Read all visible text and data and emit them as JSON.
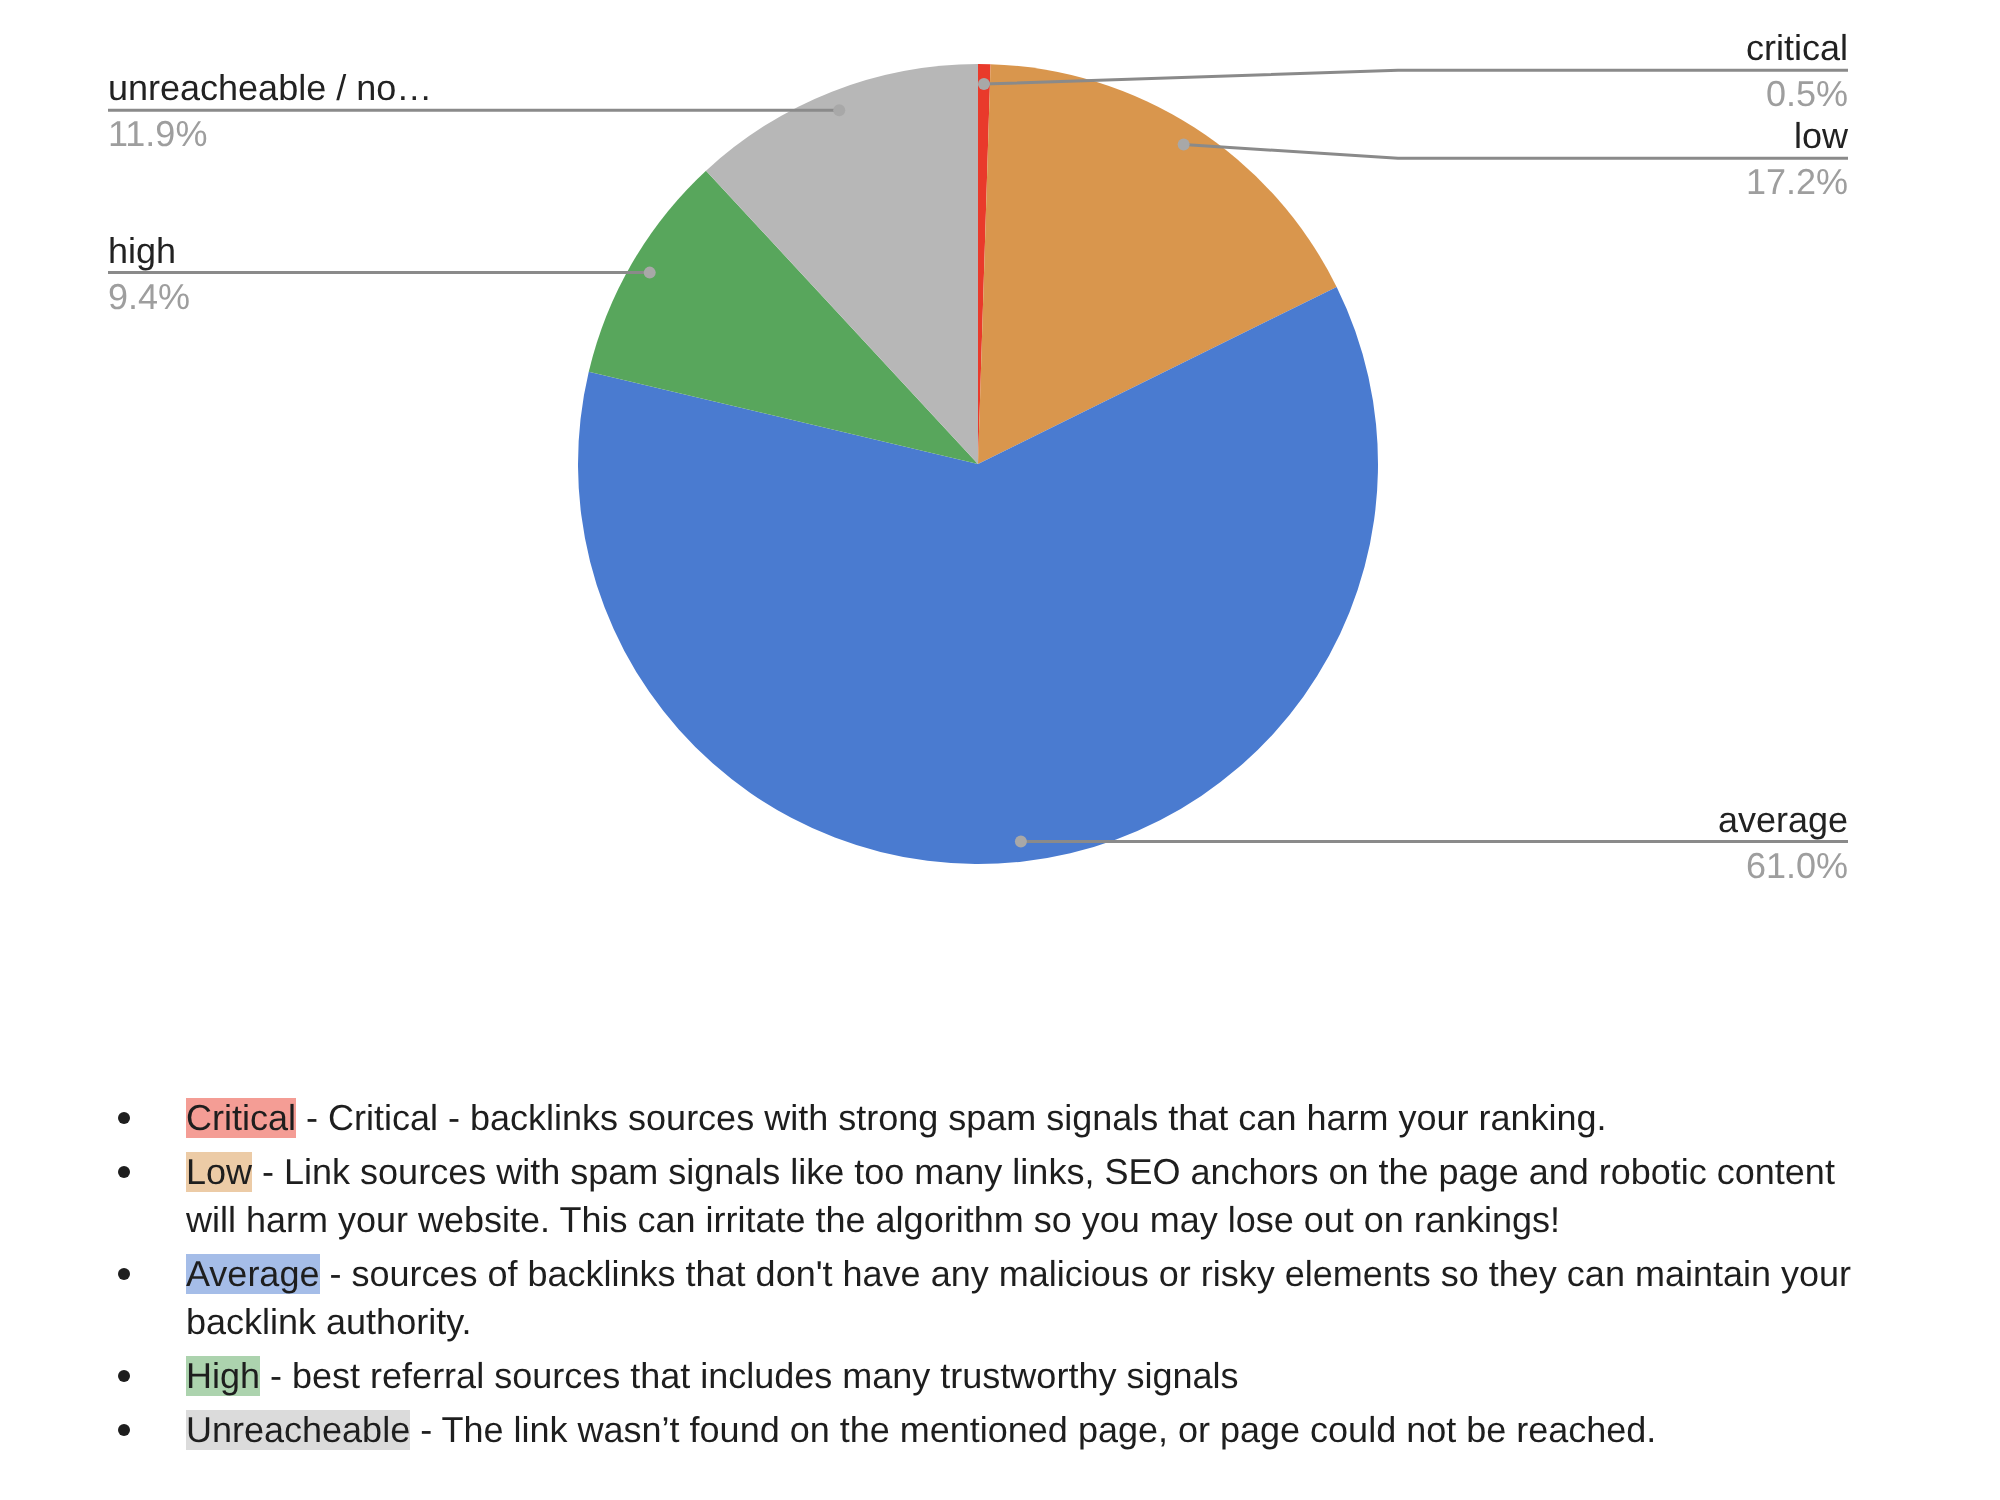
{
  "chart_data": {
    "type": "pie",
    "categories": [
      "critical",
      "low",
      "average",
      "high",
      "unreacheable / no…"
    ],
    "values": [
      0.5,
      17.2,
      61.0,
      9.4,
      11.9
    ],
    "colors": [
      "#e93a2b",
      "#d9964d",
      "#4a7bd0",
      "#58a65c",
      "#b7b7b7"
    ],
    "value_labels": [
      "0.5%",
      "17.2%",
      "61.0%",
      "9.4%",
      "11.9%"
    ],
    "annotations": [
      "Critical - Critical - backlinks sources with strong spam signals that can harm your ranking.",
      "Low - Link sources with spam signals like too many links, SEO anchors on the page and robotic content will harm your website. This can irritate the algorithm so you may lose out on rankings!",
      "Average - sources of backlinks that don't have any malicious or risky elements so they can maintain your backlink authority.",
      "High - best referral sources that includes many trustworthy signals",
      "Unreacheable - The link wasn’t found on the mentioned page, or page could not be reached."
    ]
  }
}
